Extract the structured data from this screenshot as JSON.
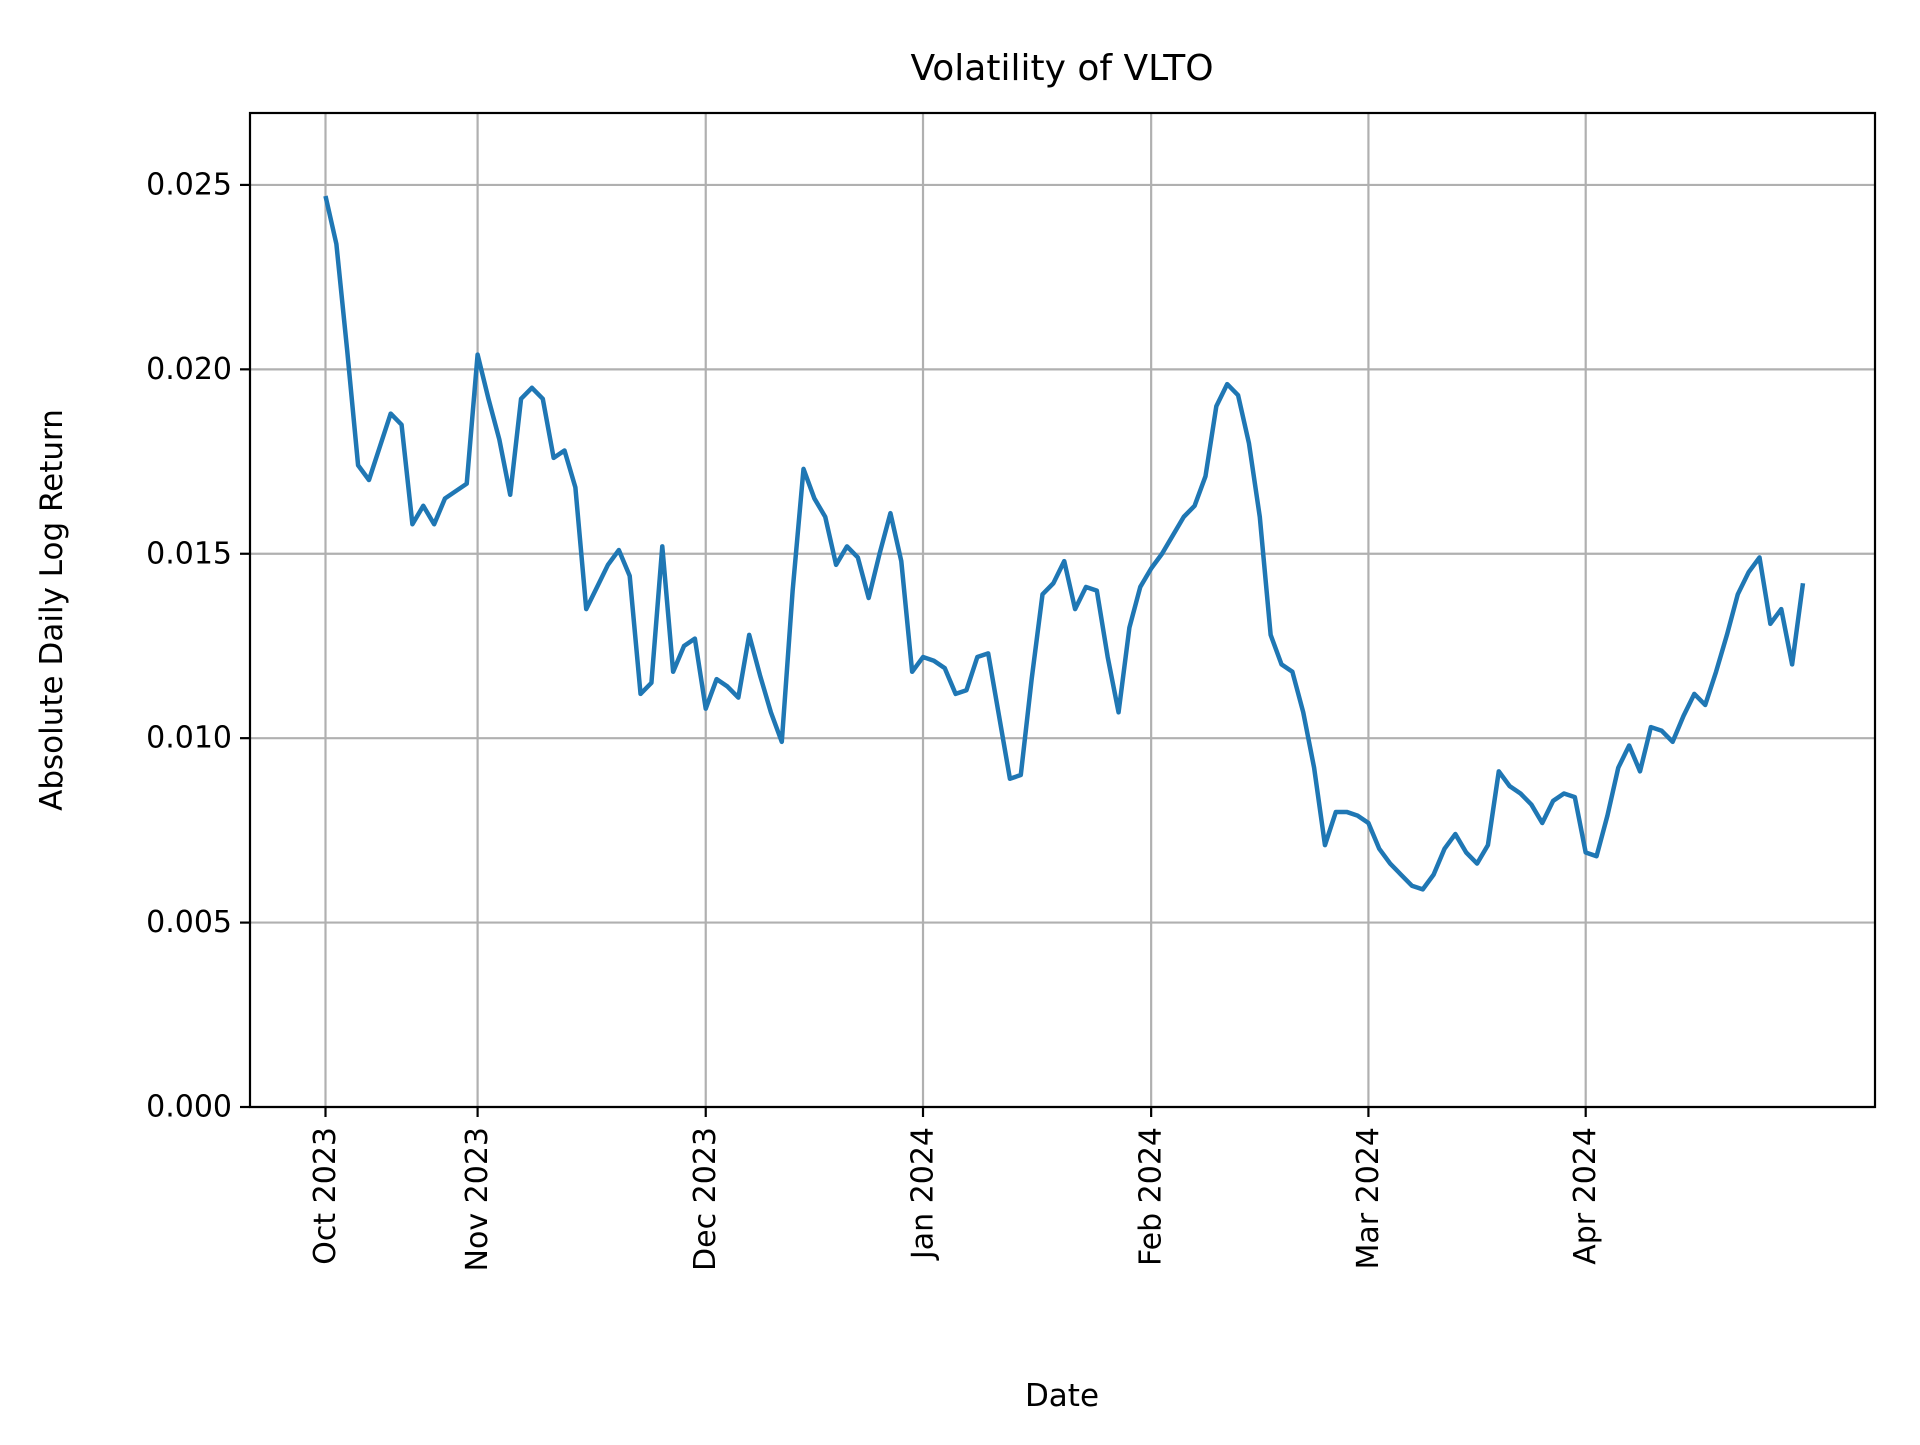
{
  "chart_data": {
    "type": "line",
    "title": "Volatility of VLTO",
    "xlabel": "Date",
    "ylabel": "Absolute Daily Log Return",
    "line_color": "#1f77b4",
    "grid_color": "#b0b0b0",
    "spine_color": "#000000",
    "background_color": "#ffffff",
    "grid_on": true,
    "legend_position": "none",
    "ylim": [
      0,
      0.02695
    ],
    "xlim_index": [
      -6.95,
      142.63
    ],
    "yticks": [
      0.0,
      0.005,
      0.01,
      0.015,
      0.02,
      0.025
    ],
    "ytick_labels": [
      "0.000",
      "0.005",
      "0.010",
      "0.015",
      "0.020",
      "0.025"
    ],
    "xtick_indices": [
      0,
      14,
      35,
      55,
      76,
      96,
      116
    ],
    "xtick_labels": [
      "Oct 2023",
      "Nov 2023",
      "Dec 2023",
      "Jan 2024",
      "Feb 2024",
      "Mar 2024",
      "Apr 2024"
    ],
    "xtick_rotation_deg": 90,
    "dates": [
      "2023-10-12",
      "2023-10-13",
      "2023-10-16",
      "2023-10-17",
      "2023-10-18",
      "2023-10-19",
      "2023-10-20",
      "2023-10-23",
      "2023-10-24",
      "2023-10-25",
      "2023-10-26",
      "2023-10-27",
      "2023-10-30",
      "2023-10-31",
      "2023-11-01",
      "2023-11-02",
      "2023-11-03",
      "2023-11-06",
      "2023-11-07",
      "2023-11-08",
      "2023-11-09",
      "2023-11-10",
      "2023-11-13",
      "2023-11-14",
      "2023-11-15",
      "2023-11-16",
      "2023-11-17",
      "2023-11-20",
      "2023-11-21",
      "2023-11-22",
      "2023-11-24",
      "2023-11-27",
      "2023-11-28",
      "2023-11-29",
      "2023-11-30",
      "2023-12-01",
      "2023-12-04",
      "2023-12-05",
      "2023-12-06",
      "2023-12-07",
      "2023-12-08",
      "2023-12-11",
      "2023-12-12",
      "2023-12-13",
      "2023-12-14",
      "2023-12-15",
      "2023-12-18",
      "2023-12-19",
      "2023-12-20",
      "2023-12-21",
      "2023-12-22",
      "2023-12-26",
      "2023-12-27",
      "2023-12-28",
      "2023-12-29",
      "2024-01-02",
      "2024-01-03",
      "2024-01-04",
      "2024-01-05",
      "2024-01-08",
      "2024-01-09",
      "2024-01-10",
      "2024-01-11",
      "2024-01-12",
      "2024-01-16",
      "2024-01-17",
      "2024-01-18",
      "2024-01-19",
      "2024-01-22",
      "2024-01-23",
      "2024-01-24",
      "2024-01-25",
      "2024-01-26",
      "2024-01-29",
      "2024-01-30",
      "2024-01-31",
      "2024-02-01",
      "2024-02-02",
      "2024-02-05",
      "2024-02-06",
      "2024-02-07",
      "2024-02-08",
      "2024-02-09",
      "2024-02-12",
      "2024-02-13",
      "2024-02-14",
      "2024-02-15",
      "2024-02-16",
      "2024-02-20",
      "2024-02-21",
      "2024-02-22",
      "2024-02-23",
      "2024-02-26",
      "2024-02-27",
      "2024-02-28",
      "2024-02-29",
      "2024-03-01",
      "2024-03-04",
      "2024-03-05",
      "2024-03-06",
      "2024-03-07",
      "2024-03-08",
      "2024-03-11",
      "2024-03-12",
      "2024-03-13",
      "2024-03-14",
      "2024-03-15",
      "2024-03-18",
      "2024-03-19",
      "2024-03-20",
      "2024-03-21",
      "2024-03-22",
      "2024-03-25",
      "2024-03-26",
      "2024-03-27",
      "2024-03-28",
      "2024-04-01",
      "2024-04-02",
      "2024-04-03",
      "2024-04-04",
      "2024-04-05",
      "2024-04-08",
      "2024-04-09",
      "2024-04-10",
      "2024-04-11",
      "2024-04-12",
      "2024-04-15",
      "2024-04-16",
      "2024-04-17",
      "2024-04-18",
      "2024-04-19",
      "2024-04-22",
      "2024-04-23",
      "2024-04-24",
      "2024-04-25",
      "2024-04-26",
      "2024-04-29"
    ],
    "values": [
      0.0247,
      0.0234,
      0.0205,
      0.0174,
      0.017,
      0.0179,
      0.0188,
      0.0185,
      0.0158,
      0.0163,
      0.0158,
      0.0165,
      0.0167,
      0.0169,
      0.0204,
      0.0192,
      0.0181,
      0.0166,
      0.0192,
      0.0195,
      0.0192,
      0.0176,
      0.0178,
      0.0168,
      0.0135,
      0.0141,
      0.0147,
      0.0151,
      0.0144,
      0.0112,
      0.0115,
      0.0152,
      0.0118,
      0.0125,
      0.0127,
      0.0108,
      0.0116,
      0.0114,
      0.0111,
      0.0128,
      0.0117,
      0.0107,
      0.0099,
      0.014,
      0.0173,
      0.0165,
      0.016,
      0.0147,
      0.0152,
      0.0149,
      0.0138,
      0.015,
      0.0161,
      0.0148,
      0.0118,
      0.0122,
      0.0121,
      0.0119,
      0.0112,
      0.0113,
      0.0122,
      0.0123,
      0.0106,
      0.0089,
      0.009,
      0.0116,
      0.0139,
      0.0142,
      0.0148,
      0.0135,
      0.0141,
      0.014,
      0.0122,
      0.0107,
      0.013,
      0.0141,
      0.0146,
      0.015,
      0.0155,
      0.016,
      0.0163,
      0.0171,
      0.019,
      0.0196,
      0.0193,
      0.018,
      0.016,
      0.0128,
      0.012,
      0.0118,
      0.0107,
      0.0092,
      0.0071,
      0.008,
      0.008,
      0.0079,
      0.0077,
      0.007,
      0.0066,
      0.0063,
      0.006,
      0.0059,
      0.0063,
      0.007,
      0.0074,
      0.0069,
      0.0066,
      0.0071,
      0.0091,
      0.0087,
      0.0085,
      0.0082,
      0.0077,
      0.0083,
      0.0085,
      0.0084,
      0.0069,
      0.0068,
      0.0079,
      0.0092,
      0.0098,
      0.0091,
      0.0103,
      0.0102,
      0.0099,
      0.0106,
      0.0112,
      0.0109,
      0.0118,
      0.0128,
      0.0139,
      0.0145,
      0.0149,
      0.0131,
      0.0135,
      0.012,
      0.0142
    ]
  }
}
